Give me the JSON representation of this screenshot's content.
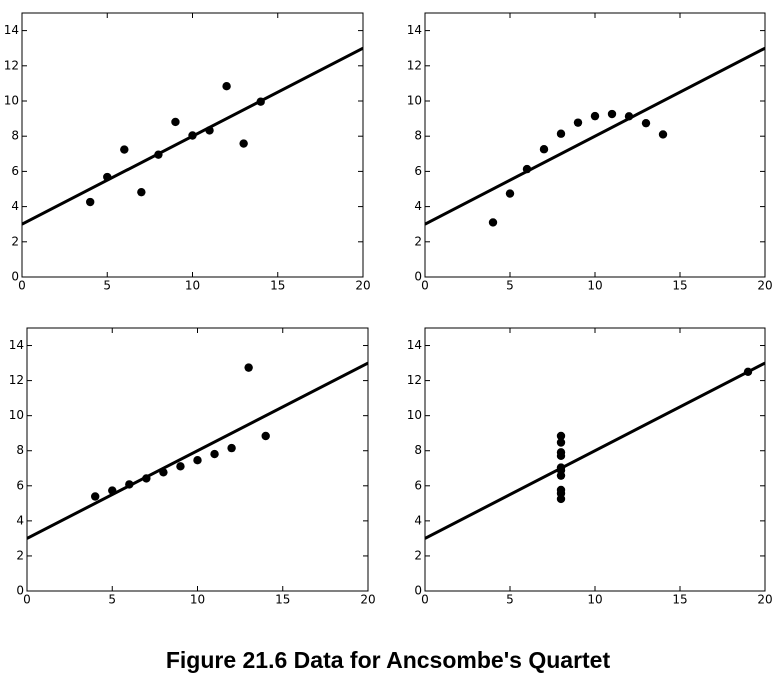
{
  "chart_data": [
    {
      "type": "scatter",
      "x": [
        10,
        8,
        13,
        9,
        11,
        14,
        6,
        4,
        12,
        7,
        5
      ],
      "values": [
        8.04,
        6.95,
        7.58,
        8.81,
        8.33,
        9.96,
        7.24,
        4.26,
        10.84,
        4.82,
        5.68
      ],
      "color": "#000000",
      "fit_line": {
        "x": [
          0,
          20
        ],
        "y": [
          3,
          13
        ]
      },
      "xlim": [
        0,
        20
      ],
      "ylim": [
        0,
        15
      ],
      "xticks": [
        0,
        5,
        10,
        15,
        20
      ],
      "yticks": [
        0,
        2,
        4,
        6,
        8,
        10,
        12,
        14
      ]
    },
    {
      "type": "scatter",
      "x": [
        10,
        8,
        13,
        9,
        11,
        14,
        6,
        4,
        12,
        7,
        5
      ],
      "values": [
        9.14,
        8.14,
        8.74,
        8.77,
        9.26,
        8.1,
        6.13,
        3.1,
        9.13,
        7.26,
        4.74
      ],
      "color": "#000000",
      "fit_line": {
        "x": [
          0,
          20
        ],
        "y": [
          3,
          13
        ]
      },
      "xlim": [
        0,
        20
      ],
      "ylim": [
        0,
        15
      ],
      "xticks": [
        0,
        5,
        10,
        15,
        20
      ],
      "yticks": [
        0,
        2,
        4,
        6,
        8,
        10,
        12,
        14
      ]
    },
    {
      "type": "scatter",
      "x": [
        10,
        8,
        13,
        9,
        11,
        14,
        6,
        4,
        12,
        7,
        5
      ],
      "values": [
        7.46,
        6.77,
        12.74,
        7.11,
        7.81,
        8.84,
        6.08,
        5.39,
        8.15,
        6.42,
        5.73
      ],
      "color": "#000000",
      "fit_line": {
        "x": [
          0,
          20
        ],
        "y": [
          3,
          13
        ]
      },
      "xlim": [
        0,
        20
      ],
      "ylim": [
        0,
        15
      ],
      "xticks": [
        0,
        5,
        10,
        15,
        20
      ],
      "yticks": [
        0,
        2,
        4,
        6,
        8,
        10,
        12,
        14
      ]
    },
    {
      "type": "scatter",
      "x": [
        8,
        8,
        8,
        8,
        8,
        8,
        8,
        19,
        8,
        8,
        8
      ],
      "values": [
        6.58,
        5.76,
        7.71,
        8.84,
        8.47,
        7.04,
        5.25,
        12.5,
        5.56,
        7.91,
        6.89
      ],
      "color": "#000000",
      "fit_line": {
        "x": [
          0,
          20
        ],
        "y": [
          3,
          13
        ]
      },
      "xlim": [
        0,
        20
      ],
      "ylim": [
        0,
        15
      ],
      "xticks": [
        0,
        5,
        10,
        15,
        20
      ],
      "yticks": [
        0,
        2,
        4,
        6,
        8,
        10,
        12,
        14
      ]
    }
  ],
  "caption": "Figure 21.6 Data for Ancsombe's Quartet"
}
